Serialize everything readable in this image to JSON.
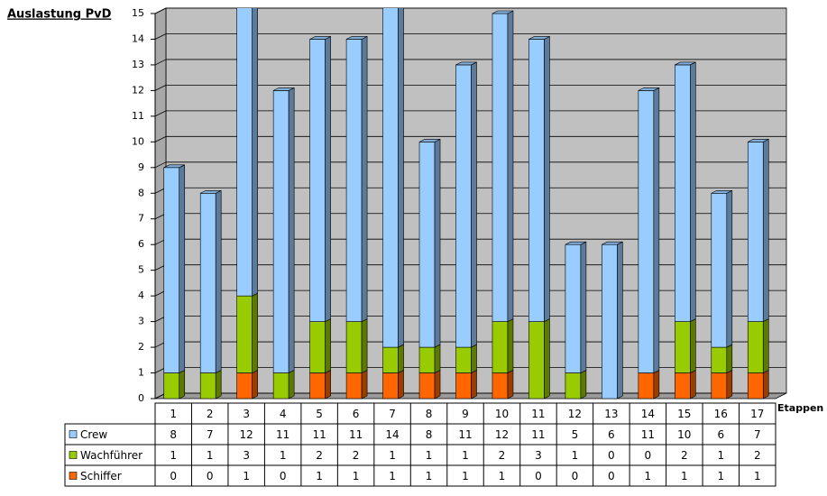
{
  "chart_data": {
    "type": "stacked-bar-3d",
    "title": "Auslastung PvD",
    "x_label": "Etappen",
    "categories": [
      "1",
      "2",
      "3",
      "4",
      "5",
      "6",
      "7",
      "8",
      "9",
      "10",
      "11",
      "12",
      "13",
      "14",
      "15",
      "16",
      "17"
    ],
    "series": [
      {
        "name": "Schiffer",
        "color": "#ff6600",
        "values": [
          0,
          0,
          1,
          0,
          1,
          1,
          1,
          1,
          1,
          1,
          0,
          0,
          0,
          1,
          1,
          1,
          1
        ]
      },
      {
        "name": "Wachführer",
        "color": "#99cc00",
        "values": [
          1,
          1,
          3,
          1,
          2,
          2,
          1,
          1,
          1,
          2,
          3,
          1,
          0,
          0,
          2,
          1,
          2
        ]
      },
      {
        "name": "Crew",
        "color": "#99ccff",
        "values": [
          8,
          7,
          12,
          11,
          11,
          11,
          14,
          8,
          11,
          12,
          11,
          5,
          6,
          11,
          10,
          6,
          7
        ]
      }
    ],
    "ylim": [
      0,
      15
    ],
    "yticks": [
      0,
      1,
      2,
      3,
      4,
      5,
      6,
      7,
      8,
      9,
      10,
      11,
      12,
      13,
      14,
      15
    ],
    "grid": true
  }
}
